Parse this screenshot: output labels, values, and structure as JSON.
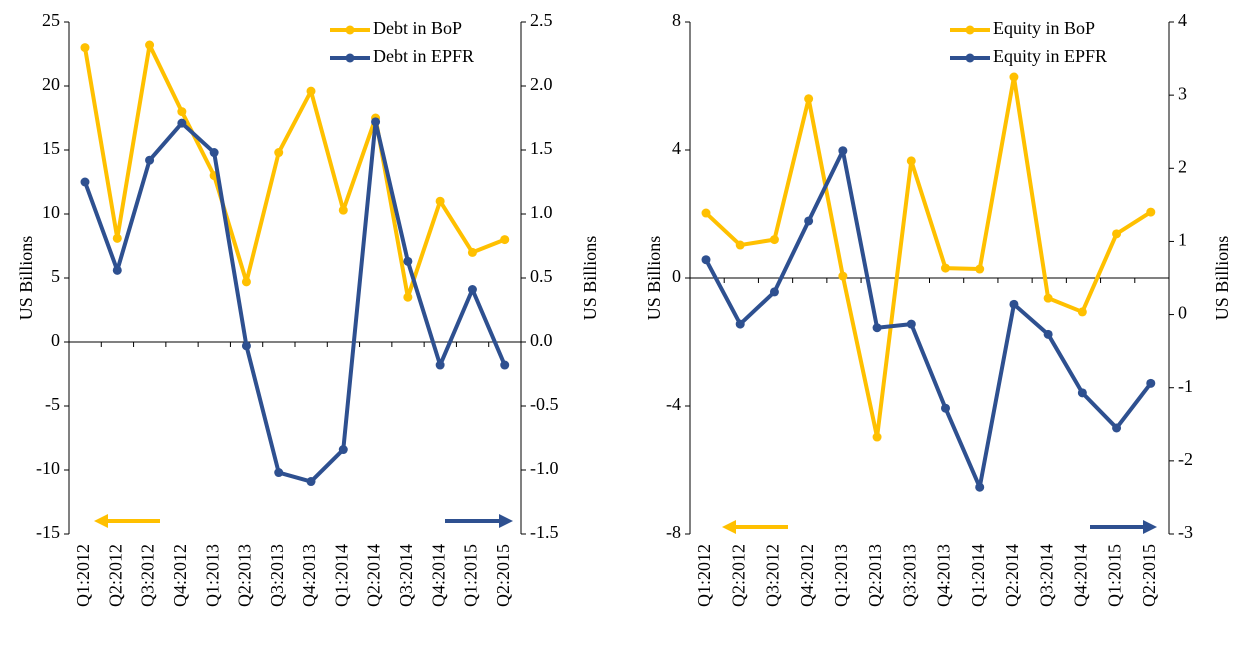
{
  "chart_data": [
    {
      "type": "line",
      "categories": [
        "Q1:2012",
        "Q2:2012",
        "Q3:2012",
        "Q4:2012",
        "Q1:2013",
        "Q2:2013",
        "Q3:2013",
        "Q4:2013",
        "Q1:2014",
        "Q2:2014",
        "Q3:2014",
        "Q4:2014",
        "Q1:2015",
        "Q2:2015"
      ],
      "y_label": "US Billions",
      "y2_label": "US Billions",
      "ylim": [
        -15,
        25
      ],
      "yticks": [
        -15,
        -10,
        -5,
        0,
        5,
        10,
        15,
        20,
        25
      ],
      "y2lim": [
        -1.5,
        2.5
      ],
      "y2ticks": [
        -1.5,
        {
          "value": -1,
          "label": "-1.0"
        },
        -0.5,
        {
          "value": 0,
          "label": "0.0"
        },
        0.5,
        {
          "value": 1,
          "label": "1.0"
        },
        1.5,
        {
          "value": 2,
          "label": "2.0"
        },
        2.5
      ],
      "series": [
        {
          "name": "Debt in BoP",
          "color": "#FFC000",
          "values": [
            23.0,
            8.1,
            23.2,
            18.0,
            13.0,
            4.7,
            14.8,
            19.6,
            10.3,
            17.5,
            3.5,
            11.0,
            7.0,
            8.0
          ]
        },
        {
          "name": "Debt in EPFR",
          "color": "#2E5090",
          "axis": "y2",
          "values": [
            1.25,
            0.56,
            1.42,
            1.71,
            1.48,
            -0.03,
            -1.02,
            -1.09,
            -0.84,
            1.72,
            0.63,
            -0.18,
            0.41,
            -0.18
          ]
        }
      ]
    },
    {
      "type": "line",
      "categories": [
        "Q1:2012",
        "Q2:2012",
        "Q3:2012",
        "Q4:2012",
        "Q1:2013",
        "Q2:2013",
        "Q3:2013",
        "Q4:2013",
        "Q1:2014",
        "Q2:2014",
        "Q3:2014",
        "Q4:2014",
        "Q1:2015",
        "Q2:2015"
      ],
      "y_label": "US Billions",
      "y2_label": "US Billions",
      "ylim": [
        -8,
        8
      ],
      "yticks": [
        -8,
        -4,
        0,
        4,
        8
      ],
      "y2lim": [
        -3,
        4
      ],
      "y2ticks": [
        -3,
        -2,
        -1,
        0,
        1,
        2,
        3,
        4
      ],
      "series": [
        {
          "name": "Equity in BoP",
          "color": "#FFC000",
          "values": [
            2.03,
            1.03,
            1.2,
            5.6,
            0.06,
            -4.97,
            3.66,
            0.31,
            0.28,
            6.28,
            -0.63,
            -1.06,
            1.38,
            2.06
          ]
        },
        {
          "name": "Equity in EPFR",
          "color": "#2E5090",
          "axis": "y2",
          "values": [
            0.75,
            -0.13,
            0.31,
            1.28,
            2.24,
            -0.18,
            -0.13,
            -1.28,
            -2.36,
            0.14,
            -0.27,
            -1.07,
            -1.55,
            -0.94
          ]
        }
      ]
    }
  ]
}
